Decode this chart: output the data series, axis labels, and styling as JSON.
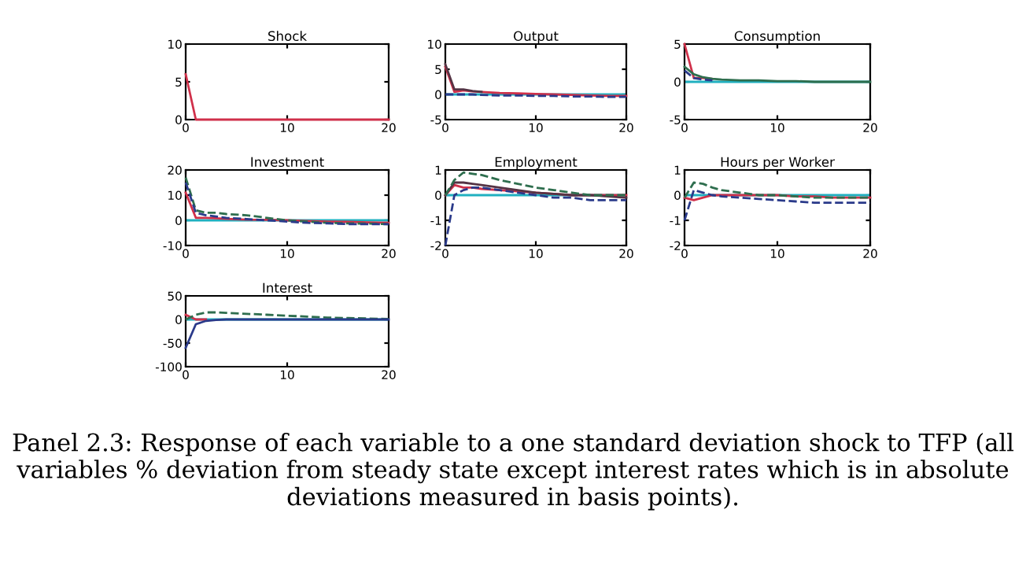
{
  "chart_data": [
    {
      "type": "line",
      "title": "Shock",
      "x": [
        0,
        1,
        2,
        3,
        4,
        6,
        8,
        10,
        12,
        14,
        16,
        18,
        20
      ],
      "xlim": [
        0,
        20
      ],
      "xticks": [
        0,
        10,
        20
      ],
      "ylim": [
        0,
        10
      ],
      "yticks": [
        0,
        5,
        10
      ],
      "grid": false,
      "legend": false,
      "series": [
        {
          "color": "#d0304a",
          "line_style": "solid",
          "values": [
            6,
            0,
            0,
            0,
            0,
            0,
            0,
            0,
            0,
            0,
            0,
            0,
            0
          ]
        }
      ]
    },
    {
      "type": "line",
      "title": "Output",
      "x": [
        0,
        1,
        2,
        3,
        4,
        6,
        8,
        10,
        12,
        14,
        16,
        18,
        20
      ],
      "xlim": [
        0,
        20
      ],
      "xticks": [
        0,
        10,
        20
      ],
      "ylim": [
        -5,
        10
      ],
      "yticks": [
        -5,
        0,
        5,
        10
      ],
      "grid": false,
      "legend": false,
      "ref_lines": [
        {
          "axis": "y",
          "value": 0,
          "color": "#20b0c0"
        }
      ],
      "series": [
        {
          "color": "#d0304a",
          "line_style": "solid",
          "values": [
            5.5,
            0.5,
            0.8,
            0.6,
            0.5,
            0.3,
            0.2,
            0.1,
            0,
            -0.1,
            -0.2,
            -0.3,
            -0.3
          ]
        },
        {
          "color": "#553344",
          "line_style": "solid",
          "values": [
            6,
            1,
            1,
            0.7,
            0.5,
            null,
            null,
            null,
            null,
            null,
            null,
            null,
            null
          ]
        },
        {
          "color": "#2a3a8a",
          "line_style": "dashed",
          "values": [
            0,
            0,
            0,
            0,
            -0.1,
            -0.2,
            -0.2,
            -0.3,
            -0.3,
            -0.4,
            -0.4,
            -0.5,
            -0.5
          ]
        }
      ]
    },
    {
      "type": "line",
      "title": "Consumption",
      "x": [
        0,
        1,
        2,
        3,
        4,
        6,
        8,
        10,
        12,
        14,
        16,
        18,
        20
      ],
      "xlim": [
        0,
        20
      ],
      "xticks": [
        0,
        10,
        20
      ],
      "ylim": [
        -5,
        5
      ],
      "yticks": [
        -5,
        0,
        5
      ],
      "grid": false,
      "legend": false,
      "ref_lines": [
        {
          "axis": "y",
          "value": 0,
          "color": "#20b0c0"
        }
      ],
      "series": [
        {
          "color": "#d0304a",
          "line_style": "solid",
          "values": [
            5,
            0.5,
            0.5,
            0.4,
            null,
            null,
            null,
            null,
            null,
            null,
            null,
            null,
            null
          ]
        },
        {
          "color": "#2e6e4e",
          "line_style": "solid",
          "values": [
            2,
            1,
            0.6,
            0.4,
            0.3,
            0.2,
            0.2,
            0.1,
            0.1,
            0,
            0,
            0,
            0
          ]
        },
        {
          "color": "#2a3a8a",
          "line_style": "dashed",
          "values": [
            1.5,
            0.5,
            0.3,
            0.2,
            null,
            null,
            null,
            null,
            null,
            null,
            null,
            null,
            null
          ]
        }
      ]
    },
    {
      "type": "line",
      "title": "Investment",
      "x": [
        0,
        1,
        2,
        3,
        4,
        6,
        8,
        10,
        12,
        14,
        16,
        18,
        20
      ],
      "xlim": [
        0,
        20
      ],
      "xticks": [
        0,
        10,
        20
      ],
      "ylim": [
        -10,
        20
      ],
      "yticks": [
        -10,
        0,
        10,
        20
      ],
      "grid": false,
      "legend": false,
      "ref_lines": [
        {
          "axis": "y",
          "value": 0,
          "color": "#20b0c0"
        }
      ],
      "series": [
        {
          "color": "#d0304a",
          "line_style": "solid",
          "values": [
            11,
            1,
            1,
            0.8,
            0.6,
            0.3,
            0.2,
            0,
            -0.3,
            -0.5,
            -0.6,
            -0.8,
            -1
          ]
        },
        {
          "color": "#2e6e4e",
          "line_style": "dashed",
          "values": [
            17,
            4,
            3,
            3,
            2.5,
            2,
            1,
            0,
            -0.5,
            -1,
            -1.2,
            -1.3,
            -1.5
          ]
        },
        {
          "color": "#2a3a8a",
          "line_style": "dashed",
          "values": [
            15,
            3,
            2,
            1.5,
            1,
            0.5,
            0,
            -0.5,
            -1,
            -1.2,
            -1.5,
            -1.5,
            -1.5
          ]
        }
      ]
    },
    {
      "type": "line",
      "title": "Employment",
      "x": [
        0,
        1,
        2,
        3,
        4,
        6,
        8,
        10,
        12,
        14,
        16,
        18,
        20
      ],
      "xlim": [
        0,
        20
      ],
      "xticks": [
        0,
        10,
        20
      ],
      "ylim": [
        -2,
        1
      ],
      "yticks": [
        -2,
        -1,
        0,
        1
      ],
      "grid": false,
      "legend": false,
      "ref_lines": [
        {
          "axis": "y",
          "value": 0,
          "color": "#20b0c0"
        }
      ],
      "series": [
        {
          "color": "#d0304a",
          "line_style": "solid",
          "values": [
            0,
            0.4,
            0.3,
            0.3,
            0.25,
            0.2,
            0.15,
            0.1,
            0.05,
            0,
            0,
            0,
            0
          ]
        },
        {
          "color": "#553344",
          "line_style": "solid",
          "values": [
            0,
            0.5,
            0.5,
            0.45,
            0.4,
            0.3,
            0.2,
            0.1,
            0.05,
            0,
            0,
            -0.05,
            -0.1
          ]
        },
        {
          "color": "#2e6e4e",
          "line_style": "dashed",
          "values": [
            0,
            0.6,
            0.9,
            0.85,
            0.8,
            0.6,
            0.45,
            0.3,
            0.2,
            0.1,
            0,
            0,
            0
          ]
        },
        {
          "color": "#2a3a8a",
          "line_style": "dashed",
          "values": [
            -2,
            0,
            0.2,
            0.3,
            0.3,
            0.2,
            0.1,
            0,
            -0.1,
            -0.1,
            -0.2,
            -0.2,
            -0.2
          ]
        }
      ]
    },
    {
      "type": "line",
      "title": "Hours per Worker",
      "x": [
        0,
        1,
        2,
        3,
        4,
        6,
        8,
        10,
        12,
        14,
        16,
        18,
        20
      ],
      "xlim": [
        0,
        20
      ],
      "xticks": [
        0,
        10,
        20
      ],
      "ylim": [
        -2,
        1
      ],
      "yticks": [
        -2,
        -1,
        0,
        1
      ],
      "grid": false,
      "legend": false,
      "ref_lines": [
        {
          "axis": "y",
          "value": 0,
          "color": "#20b0c0"
        }
      ],
      "series": [
        {
          "color": "#d0304a",
          "line_style": "solid",
          "values": [
            -0.1,
            -0.2,
            -0.1,
            0,
            0,
            0,
            0,
            0,
            -0.05,
            -0.05,
            -0.1,
            -0.1,
            -0.1
          ]
        },
        {
          "color": "#2e6e4e",
          "line_style": "dashed",
          "values": [
            -0.1,
            0.5,
            0.45,
            0.3,
            0.2,
            0.1,
            0,
            0,
            -0.05,
            -0.1,
            -0.1,
            -0.1,
            -0.1
          ]
        },
        {
          "color": "#2a3a8a",
          "line_style": "dashed",
          "values": [
            -1,
            0.2,
            0.1,
            0,
            -0.05,
            -0.1,
            -0.15,
            -0.2,
            -0.25,
            -0.3,
            -0.3,
            -0.3,
            -0.3
          ]
        }
      ]
    },
    {
      "type": "line",
      "title": "Interest",
      "x": [
        0,
        1,
        2,
        3,
        4,
        6,
        8,
        10,
        12,
        14,
        16,
        18,
        20
      ],
      "xlim": [
        0,
        20
      ],
      "xticks": [
        0,
        10,
        20
      ],
      "ylim": [
        -100,
        50
      ],
      "yticks": [
        -100,
        -50,
        0,
        50
      ],
      "grid": false,
      "legend": false,
      "ref_lines": [
        {
          "axis": "y",
          "value": 0,
          "color": "#20b0c0"
        }
      ],
      "annotations": [
        "Panel 2.3: Response of each variable to a one standard deviation shock to TFP (all variables % deviation from steady state except interest rates which is in absolute deviations measured in basis points)."
      ],
      "series": [
        {
          "color": "#d0304a",
          "line_style": "solid",
          "values": [
            10,
            0,
            0,
            null,
            null,
            null,
            null,
            null,
            null,
            null,
            null,
            null,
            null
          ]
        },
        {
          "color": "#2e6e4e",
          "line_style": "dashed",
          "values": [
            0,
            10,
            15,
            15,
            14,
            12,
            10,
            8,
            6,
            4,
            3,
            2,
            1
          ]
        },
        {
          "color": "#2a3a8a",
          "line_style": "solid",
          "values": [
            -60,
            -10,
            -3,
            -1,
            0,
            0,
            0,
            0,
            0,
            0,
            0,
            0,
            0
          ]
        }
      ]
    }
  ]
}
